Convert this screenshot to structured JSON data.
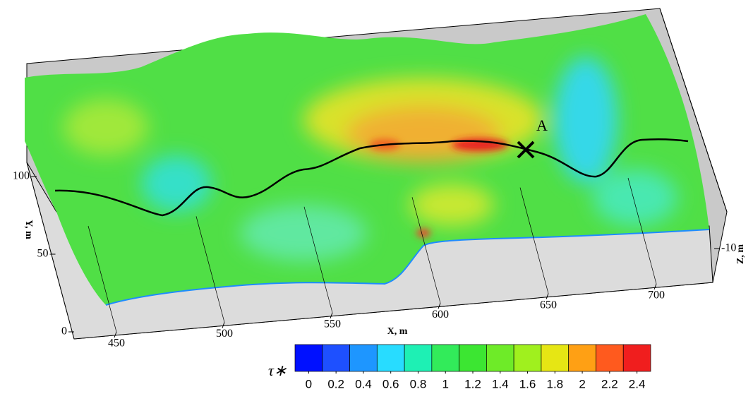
{
  "chart_data": {
    "type": "surface",
    "x_label": "X, m",
    "y_label": "Y, m",
    "z_label": "Z, m",
    "xticks": [
      450,
      500,
      550,
      600,
      650,
      700
    ],
    "yticks": [
      0,
      50,
      100
    ],
    "zticks": [
      -10
    ],
    "annotation": "A",
    "colorbar": {
      "label": "τ∗",
      "ticks": [
        0,
        0.2,
        0.4,
        0.6,
        0.8,
        1,
        1.2,
        1.4,
        1.6,
        1.8,
        2,
        2.2,
        2.4
      ],
      "colors": [
        "#0010ff",
        "#1e50ff",
        "#1e96ff",
        "#28dcff",
        "#1ef0b4",
        "#32eb5a",
        "#3ce632",
        "#6eeb28",
        "#a0f01e",
        "#e6e614",
        "#ffa014",
        "#ff5a1e",
        "#f01e1e"
      ]
    }
  }
}
